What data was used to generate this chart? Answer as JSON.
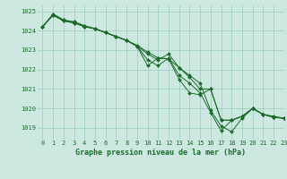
{
  "title": "Graphe pression niveau de la mer (hPa)",
  "bg_color": "#cce8e0",
  "grid_color": "#99ccbb",
  "line_color": "#1a6b2a",
  "xlim": [
    -0.5,
    23
  ],
  "ylim": [
    1018.4,
    1025.3
  ],
  "yticks": [
    1019,
    1020,
    1021,
    1022,
    1023,
    1024,
    1025
  ],
  "xticks": [
    0,
    1,
    2,
    3,
    4,
    5,
    6,
    7,
    8,
    9,
    10,
    11,
    12,
    13,
    14,
    15,
    16,
    17,
    18,
    19,
    20,
    21,
    22,
    23
  ],
  "series": [
    [
      1024.2,
      1024.8,
      1024.5,
      1024.4,
      1024.2,
      1024.1,
      1023.9,
      1023.7,
      1023.5,
      1023.2,
      1022.8,
      1022.5,
      1022.8,
      1022.1,
      1021.7,
      1021.3,
      1019.9,
      1019.1,
      1018.8,
      1019.5,
      1020.0,
      1019.7,
      1019.6,
      1019.5
    ],
    [
      1024.2,
      1024.8,
      1024.5,
      1024.4,
      1024.2,
      1024.1,
      1023.9,
      1023.7,
      1023.5,
      1023.2,
      1022.5,
      1022.2,
      1022.6,
      1021.7,
      1021.3,
      1020.8,
      1019.8,
      1018.85,
      1019.4,
      1019.6,
      1020.0,
      1019.7,
      1019.55,
      1019.5
    ],
    [
      1024.2,
      1024.85,
      1024.55,
      1024.45,
      1024.25,
      1024.1,
      1023.9,
      1023.7,
      1023.5,
      1023.25,
      1022.9,
      1022.6,
      1022.55,
      1022.1,
      1021.6,
      1021.0,
      1021.0,
      1019.4,
      1019.4,
      1019.6,
      1020.0,
      1019.7,
      1019.55,
      1019.5
    ],
    [
      1024.2,
      1024.85,
      1024.55,
      1024.45,
      1024.25,
      1024.1,
      1023.9,
      1023.7,
      1023.5,
      1023.2,
      1022.2,
      1022.6,
      1022.55,
      1021.5,
      1020.8,
      1020.7,
      1021.0,
      1019.4,
      1019.4,
      1019.6,
      1020.0,
      1019.7,
      1019.55,
      1019.5
    ]
  ],
  "title_fontsize": 6.0,
  "tick_fontsize": 5.0,
  "linewidth": 0.7,
  "markersize": 2.0
}
